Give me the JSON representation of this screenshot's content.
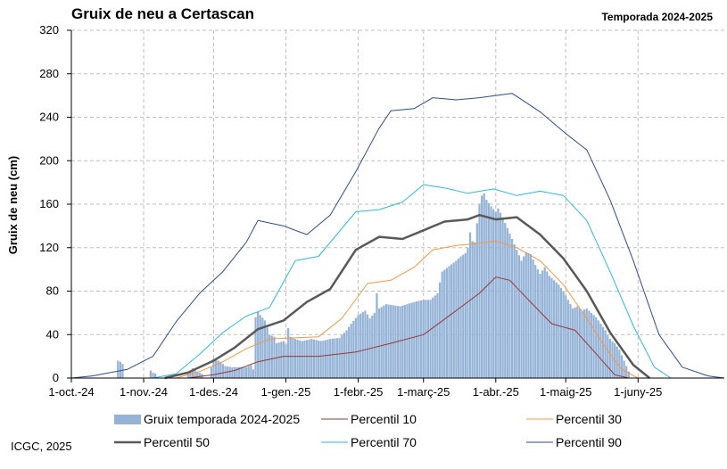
{
  "header": {
    "title": "Gruix de neu a Certascan",
    "season": "Temporada 2024-2025"
  },
  "footer": {
    "credit": "ICGC, 2025"
  },
  "chart_data": {
    "type": "bar",
    "title": "Gruix de neu a Certascan",
    "subtitle": "Temporada 2024-2025",
    "xlabel": "",
    "ylabel": "Gruix de neu (cm)",
    "ylim": [
      0,
      320
    ],
    "yticks": [
      0,
      40,
      80,
      120,
      160,
      200,
      240,
      280,
      320
    ],
    "xlim": [
      "2024-10-01",
      "2025-07-08"
    ],
    "xticks": [
      {
        "date": "2024-10-01",
        "label": "1-oct.-24"
      },
      {
        "date": "2024-11-01",
        "label": "1-nov.-24"
      },
      {
        "date": "2024-12-01",
        "label": "1-des.-24"
      },
      {
        "date": "2025-01-01",
        "label": "1-gen.-25"
      },
      {
        "date": "2025-02-01",
        "label": "1-febr.-25"
      },
      {
        "date": "2025-03-01",
        "label": "1-març-25"
      },
      {
        "date": "2025-04-01",
        "label": "1-abr.-25"
      },
      {
        "date": "2025-05-01",
        "label": "1-maig-25"
      },
      {
        "date": "2025-06-01",
        "label": "1-juny-25"
      }
    ],
    "grid": true,
    "legend_position": "bottom",
    "series": [
      {
        "name": "Gruix temporada 2024-2025",
        "kind": "bar",
        "color": "#95b3d7",
        "points": [
          [
            "2024-10-20",
            0
          ],
          [
            "2024-10-21",
            16
          ],
          [
            "2024-10-22",
            15
          ],
          [
            "2024-10-23",
            13
          ],
          [
            "2024-10-24",
            0
          ],
          [
            "2024-11-03",
            0
          ],
          [
            "2024-11-04",
            7
          ],
          [
            "2024-11-05",
            5
          ],
          [
            "2024-11-06",
            4
          ],
          [
            "2024-11-07",
            0
          ],
          [
            "2024-11-19",
            0
          ],
          [
            "2024-11-20",
            4
          ],
          [
            "2024-11-22",
            9
          ],
          [
            "2024-11-24",
            6
          ],
          [
            "2024-11-26",
            4
          ],
          [
            "2024-11-27",
            0
          ],
          [
            "2024-11-29",
            0
          ],
          [
            "2024-11-30",
            10
          ],
          [
            "2024-12-01",
            18
          ],
          [
            "2024-12-02",
            17
          ],
          [
            "2024-12-04",
            15
          ],
          [
            "2024-12-06",
            11
          ],
          [
            "2024-12-09",
            10
          ],
          [
            "2024-12-12",
            10
          ],
          [
            "2024-12-15",
            10
          ],
          [
            "2024-12-17",
            12
          ],
          [
            "2024-12-18",
            8
          ],
          [
            "2024-12-19",
            56
          ],
          [
            "2024-12-20",
            61
          ],
          [
            "2024-12-21",
            58
          ],
          [
            "2024-12-23",
            53
          ],
          [
            "2024-12-25",
            40
          ],
          [
            "2024-12-27",
            38
          ],
          [
            "2024-12-28",
            32
          ],
          [
            "2024-12-31",
            34
          ],
          [
            "2025-01-01",
            31
          ],
          [
            "2025-01-02",
            46
          ],
          [
            "2025-01-03",
            38
          ],
          [
            "2025-01-05",
            36
          ],
          [
            "2025-01-08",
            34
          ],
          [
            "2025-01-12",
            36
          ],
          [
            "2025-01-16",
            34
          ],
          [
            "2025-01-20",
            36
          ],
          [
            "2025-01-24",
            37
          ],
          [
            "2025-01-27",
            44
          ],
          [
            "2025-01-29",
            50
          ],
          [
            "2025-02-01",
            58
          ],
          [
            "2025-02-04",
            62
          ],
          [
            "2025-02-06",
            55
          ],
          [
            "2025-02-08",
            60
          ],
          [
            "2025-02-09",
            78
          ],
          [
            "2025-02-10",
            64
          ],
          [
            "2025-02-13",
            68
          ],
          [
            "2025-02-16",
            67
          ],
          [
            "2025-02-19",
            66
          ],
          [
            "2025-02-22",
            68
          ],
          [
            "2025-02-25",
            70
          ],
          [
            "2025-03-01",
            72
          ],
          [
            "2025-03-04",
            72
          ],
          [
            "2025-03-07",
            78
          ],
          [
            "2025-03-09",
            98
          ],
          [
            "2025-03-12",
            103
          ],
          [
            "2025-03-15",
            108
          ],
          [
            "2025-03-17",
            112
          ],
          [
            "2025-03-19",
            115
          ],
          [
            "2025-03-20",
            120
          ],
          [
            "2025-03-21",
            134
          ],
          [
            "2025-03-22",
            126
          ],
          [
            "2025-03-23",
            125
          ],
          [
            "2025-03-25",
            160
          ],
          [
            "2025-03-26",
            168
          ],
          [
            "2025-03-27",
            170
          ],
          [
            "2025-03-28",
            164
          ],
          [
            "2025-03-30",
            158
          ],
          [
            "2025-04-01",
            153
          ],
          [
            "2025-04-02",
            156
          ],
          [
            "2025-04-04",
            148
          ],
          [
            "2025-04-06",
            138
          ],
          [
            "2025-04-08",
            128
          ],
          [
            "2025-04-10",
            118
          ],
          [
            "2025-04-12",
            108
          ],
          [
            "2025-04-14",
            116
          ],
          [
            "2025-04-16",
            114
          ],
          [
            "2025-04-18",
            104
          ],
          [
            "2025-04-20",
            96
          ],
          [
            "2025-04-22",
            102
          ],
          [
            "2025-04-24",
            94
          ],
          [
            "2025-04-26",
            90
          ],
          [
            "2025-04-28",
            86
          ],
          [
            "2025-04-30",
            80
          ],
          [
            "2025-05-02",
            72
          ],
          [
            "2025-05-04",
            64
          ],
          [
            "2025-05-06",
            66
          ],
          [
            "2025-05-08",
            62
          ],
          [
            "2025-05-10",
            64
          ],
          [
            "2025-05-12",
            60
          ],
          [
            "2025-05-14",
            56
          ],
          [
            "2025-05-16",
            50
          ],
          [
            "2025-05-18",
            44
          ],
          [
            "2025-05-20",
            36
          ],
          [
            "2025-05-22",
            32
          ],
          [
            "2025-05-24",
            26
          ],
          [
            "2025-05-26",
            16
          ],
          [
            "2025-05-28",
            6
          ],
          [
            "2025-05-29",
            0
          ]
        ]
      },
      {
        "name": "Percentil 10",
        "kind": "line",
        "color": "#953735",
        "width": 1,
        "points": [
          [
            "2024-11-20",
            0
          ],
          [
            "2024-12-01",
            3
          ],
          [
            "2024-12-10",
            7
          ],
          [
            "2024-12-20",
            15
          ],
          [
            "2024-12-31",
            20
          ],
          [
            "2025-01-15",
            20
          ],
          [
            "2025-01-31",
            24
          ],
          [
            "2025-02-15",
            32
          ],
          [
            "2025-03-01",
            40
          ],
          [
            "2025-03-15",
            62
          ],
          [
            "2025-03-25",
            78
          ],
          [
            "2025-04-01",
            93
          ],
          [
            "2025-04-07",
            90
          ],
          [
            "2025-04-15",
            72
          ],
          [
            "2025-04-25",
            50
          ],
          [
            "2025-05-05",
            44
          ],
          [
            "2025-05-15",
            20
          ],
          [
            "2025-05-22",
            3
          ],
          [
            "2025-05-28",
            0
          ]
        ]
      },
      {
        "name": "Percentil 30",
        "kind": "line",
        "color": "#f79646",
        "width": 1,
        "points": [
          [
            "2024-11-15",
            0
          ],
          [
            "2024-11-25",
            6
          ],
          [
            "2024-12-05",
            15
          ],
          [
            "2024-12-15",
            27
          ],
          [
            "2024-12-25",
            36
          ],
          [
            "2025-01-15",
            38
          ],
          [
            "2025-01-25",
            55
          ],
          [
            "2025-02-05",
            87
          ],
          [
            "2025-02-15",
            90
          ],
          [
            "2025-02-25",
            102
          ],
          [
            "2025-03-05",
            118
          ],
          [
            "2025-03-15",
            122
          ],
          [
            "2025-03-25",
            124
          ],
          [
            "2025-04-01",
            126
          ],
          [
            "2025-04-10",
            120
          ],
          [
            "2025-04-20",
            108
          ],
          [
            "2025-04-30",
            86
          ],
          [
            "2025-05-10",
            55
          ],
          [
            "2025-05-18",
            28
          ],
          [
            "2025-05-25",
            8
          ],
          [
            "2025-06-01",
            0
          ]
        ]
      },
      {
        "name": "Percentil 50",
        "kind": "line",
        "color": "#595959",
        "width": 2.5,
        "points": [
          [
            "2024-11-10",
            0
          ],
          [
            "2024-11-20",
            5
          ],
          [
            "2024-12-01",
            16
          ],
          [
            "2024-12-10",
            28
          ],
          [
            "2024-12-20",
            45
          ],
          [
            "2024-12-31",
            53
          ],
          [
            "2025-01-10",
            70
          ],
          [
            "2025-01-20",
            82
          ],
          [
            "2025-01-31",
            118
          ],
          [
            "2025-02-10",
            130
          ],
          [
            "2025-02-20",
            128
          ],
          [
            "2025-03-01",
            136
          ],
          [
            "2025-03-10",
            144
          ],
          [
            "2025-03-20",
            146
          ],
          [
            "2025-03-25",
            150
          ],
          [
            "2025-04-01",
            146
          ],
          [
            "2025-04-10",
            148
          ],
          [
            "2025-04-20",
            132
          ],
          [
            "2025-04-30",
            110
          ],
          [
            "2025-05-10",
            80
          ],
          [
            "2025-05-20",
            42
          ],
          [
            "2025-05-30",
            12
          ],
          [
            "2025-06-06",
            0
          ]
        ]
      },
      {
        "name": "Percentil 70",
        "kind": "line",
        "color": "#31b6e0",
        "width": 1,
        "points": [
          [
            "2024-11-05",
            0
          ],
          [
            "2024-11-15",
            4
          ],
          [
            "2024-11-25",
            22
          ],
          [
            "2024-12-05",
            42
          ],
          [
            "2024-12-15",
            57
          ],
          [
            "2024-12-25",
            65
          ],
          [
            "2025-01-05",
            108
          ],
          [
            "2025-01-15",
            112
          ],
          [
            "2025-01-31",
            153
          ],
          [
            "2025-02-10",
            155
          ],
          [
            "2025-02-20",
            162
          ],
          [
            "2025-03-01",
            178
          ],
          [
            "2025-03-10",
            175
          ],
          [
            "2025-03-20",
            170
          ],
          [
            "2025-03-31",
            174
          ],
          [
            "2025-04-10",
            168
          ],
          [
            "2025-04-20",
            172
          ],
          [
            "2025-04-30",
            168
          ],
          [
            "2025-05-10",
            145
          ],
          [
            "2025-05-20",
            98
          ],
          [
            "2025-05-30",
            48
          ],
          [
            "2025-06-08",
            10
          ],
          [
            "2025-06-15",
            0
          ]
        ]
      },
      {
        "name": "Percentil 90",
        "kind": "line",
        "color": "#2e4b8f",
        "width": 1,
        "points": [
          [
            "2024-10-01",
            0
          ],
          [
            "2024-10-10",
            2
          ],
          [
            "2024-10-25",
            8
          ],
          [
            "2024-11-05",
            20
          ],
          [
            "2024-11-15",
            52
          ],
          [
            "2024-11-25",
            78
          ],
          [
            "2024-12-05",
            98
          ],
          [
            "2024-12-15",
            125
          ],
          [
            "2024-12-20",
            145
          ],
          [
            "2024-12-31",
            140
          ],
          [
            "2025-01-10",
            132
          ],
          [
            "2025-01-20",
            150
          ],
          [
            "2025-01-31",
            190
          ],
          [
            "2025-02-10",
            230
          ],
          [
            "2025-02-15",
            246
          ],
          [
            "2025-02-25",
            248
          ],
          [
            "2025-03-05",
            258
          ],
          [
            "2025-03-15",
            256
          ],
          [
            "2025-03-25",
            258
          ],
          [
            "2025-04-01",
            260
          ],
          [
            "2025-04-08",
            262
          ],
          [
            "2025-04-20",
            245
          ],
          [
            "2025-05-01",
            225
          ],
          [
            "2025-05-10",
            210
          ],
          [
            "2025-05-20",
            164
          ],
          [
            "2025-05-30",
            108
          ],
          [
            "2025-06-10",
            40
          ],
          [
            "2025-06-20",
            10
          ],
          [
            "2025-07-01",
            2
          ],
          [
            "2025-07-08",
            0
          ]
        ]
      }
    ]
  }
}
